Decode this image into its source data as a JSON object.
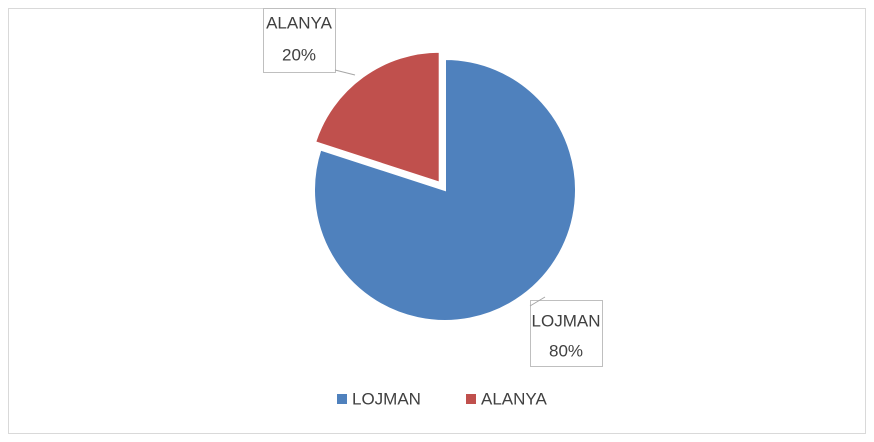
{
  "chart_data": {
    "type": "pie",
    "categories": [
      "LOJMAN",
      "ALANYA"
    ],
    "series": [
      {
        "colors": [
          "#4f81bd",
          "#c0504d"
        ],
        "values": [
          80,
          20
        ],
        "value_labels": [
          "80%",
          "20%"
        ]
      }
    ],
    "legend": "bottom"
  }
}
